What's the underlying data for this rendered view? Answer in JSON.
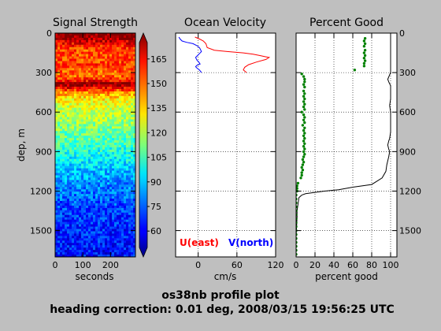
{
  "figure": {
    "background": "#bfbfbf",
    "title_line1": "os38nb profile plot",
    "title_line2": "heading correction:  0.01 deg, 2008/03/15 19:56:25 UTC"
  },
  "chart_data": [
    {
      "type": "heatmap",
      "title": "Signal Strength",
      "xlabel": "seconds",
      "ylabel": "dep, m",
      "xlim": [
        0,
        290
      ],
      "ylim": [
        1700,
        0
      ],
      "xticks": [
        "0",
        "100",
        "200"
      ],
      "yticks": [
        "0",
        "300",
        "600",
        "900",
        "1200",
        "1500"
      ],
      "colormap": "jet",
      "colorbar": {
        "range": [
          50,
          175
        ],
        "ticks": [
          "60",
          "75",
          "90",
          "105",
          "120",
          "135",
          "150",
          "165"
        ]
      },
      "profile_by_depth": {
        "depth": [
          0,
          20,
          40,
          60,
          80,
          100,
          120,
          140,
          160,
          180,
          200,
          220,
          240,
          260,
          280,
          300,
          320,
          340,
          360,
          380,
          400,
          420,
          440,
          460,
          480,
          500,
          550,
          600,
          650,
          700,
          750,
          800,
          850,
          900,
          950,
          1000,
          1050,
          1100,
          1150,
          1200,
          1250,
          1300,
          1350,
          1400,
          1450,
          1500,
          1550,
          1600,
          1650,
          1700
        ],
        "value": [
          175,
          173,
          171,
          165,
          160,
          156,
          152,
          150,
          150,
          151,
          150,
          152,
          153,
          151,
          149,
          147,
          146,
          150,
          158,
          172,
          170,
          158,
          148,
          140,
          135,
          130,
          124,
          120,
          118,
          114,
          111,
          107,
          104,
          100,
          97,
          93,
          89,
          86,
          82,
          80,
          78,
          75,
          73,
          72,
          71,
          70,
          70,
          69,
          68,
          67
        ]
      }
    },
    {
      "type": "line",
      "title": "Ocean Velocity",
      "xlabel": "cm/s",
      "xlim": [
        -35,
        120
      ],
      "ylim": [
        1700,
        0
      ],
      "xticks": [
        "0",
        "60",
        "120"
      ],
      "series": [
        {
          "name": "U(east)",
          "color": "#ff0000",
          "x": [
            -5,
            2,
            8,
            12,
            14,
            25,
            45,
            70,
            85,
            95,
            105,
            110,
            105,
            90,
            78,
            72,
            70,
            75
          ],
          "depth": [
            30,
            45,
            60,
            80,
            110,
            130,
            140,
            150,
            160,
            170,
            180,
            185,
            200,
            220,
            240,
            260,
            280,
            300
          ]
        },
        {
          "name": "V(north)",
          "color": "#0000ff",
          "x": [
            -30,
            -28,
            -25,
            -18,
            -8,
            -2,
            2,
            5,
            0,
            -4,
            -2,
            1,
            3,
            -2,
            -4,
            -2,
            2,
            5
          ],
          "depth": [
            30,
            45,
            60,
            70,
            80,
            95,
            110,
            140,
            165,
            185,
            205,
            220,
            235,
            245,
            255,
            265,
            280,
            300
          ]
        }
      ]
    },
    {
      "type": "scatter",
      "title": "Percent Good",
      "xlabel": "percent good",
      "xlim": [
        0,
        100
      ],
      "ylim": [
        1700,
        0
      ],
      "xticks": [
        "0",
        "20",
        "40",
        "60",
        "80",
        "100"
      ],
      "yticks": [
        "0",
        "300",
        "600",
        "900",
        "1200",
        "1500"
      ],
      "series": [
        {
          "type": "scatter",
          "color": "#008000",
          "points": [
            [
              73,
              40
            ],
            [
              72,
              60
            ],
            [
              73,
              80
            ],
            [
              72,
              100
            ],
            [
              73,
              130
            ],
            [
              72,
              150
            ],
            [
              73,
              170
            ],
            [
              72,
              190
            ],
            [
              73,
              210
            ],
            [
              72,
              230
            ],
            [
              72,
              250
            ],
            [
              62,
              280
            ],
            [
              6,
              310
            ],
            [
              8,
              330
            ],
            [
              9,
              350
            ],
            [
              9,
              370
            ],
            [
              8,
              390
            ],
            [
              9,
              410
            ],
            [
              8,
              440
            ],
            [
              9,
              460
            ],
            [
              8,
              480
            ],
            [
              9,
              500
            ],
            [
              8,
              520
            ],
            [
              9,
              540
            ],
            [
              8,
              560
            ],
            [
              9,
              580
            ],
            [
              6,
              600
            ],
            [
              8,
              620
            ],
            [
              9,
              640
            ],
            [
              8,
              660
            ],
            [
              9,
              680
            ],
            [
              7,
              700
            ],
            [
              9,
              720
            ],
            [
              8,
              740
            ],
            [
              9,
              760
            ],
            [
              8,
              780
            ],
            [
              9,
              800
            ],
            [
              8,
              820
            ],
            [
              9,
              840
            ],
            [
              8,
              860
            ],
            [
              9,
              880
            ],
            [
              8,
              900
            ],
            [
              9,
              920
            ],
            [
              8,
              940
            ],
            [
              7,
              960
            ],
            [
              8,
              980
            ],
            [
              7,
              1000
            ],
            [
              6,
              1020
            ],
            [
              7,
              1040
            ],
            [
              6,
              1060
            ],
            [
              6,
              1080
            ],
            [
              5,
              1100
            ],
            [
              2,
              1140
            ],
            [
              1,
              1160
            ],
            [
              1,
              1180
            ],
            [
              1,
              1200
            ],
            [
              0,
              1230
            ],
            [
              0,
              1260
            ],
            [
              0,
              1290
            ],
            [
              0,
              1320
            ],
            [
              0,
              1350
            ],
            [
              0,
              1380
            ],
            [
              0,
              1410
            ],
            [
              0,
              1440
            ],
            [
              0,
              1470
            ],
            [
              0,
              1500
            ],
            [
              0,
              1530
            ],
            [
              0,
              1560
            ],
            [
              0,
              1590
            ],
            [
              0,
              1620
            ],
            [
              0,
              1650
            ],
            [
              0,
              1680
            ]
          ]
        },
        {
          "type": "line",
          "color": "#000000",
          "x": [
            100,
            100,
            100,
            100,
            100,
            100,
            100,
            97,
            98,
            100,
            100,
            100,
            99,
            100,
            100,
            100,
            100,
            99,
            98,
            97,
            98,
            99,
            98,
            97,
            96,
            95,
            91,
            80,
            60,
            45,
            30,
            20,
            10,
            6,
            3,
            2,
            1,
            1,
            0,
            0
          ],
          "depth": [
            0,
            30,
            60,
            100,
            150,
            200,
            300,
            350,
            370,
            400,
            450,
            500,
            550,
            600,
            650,
            700,
            750,
            800,
            820,
            850,
            880,
            900,
            940,
            970,
            1000,
            1050,
            1100,
            1150,
            1170,
            1190,
            1200,
            1210,
            1220,
            1230,
            1250,
            1300,
            1350,
            1400,
            1550,
            1700
          ]
        }
      ]
    }
  ]
}
